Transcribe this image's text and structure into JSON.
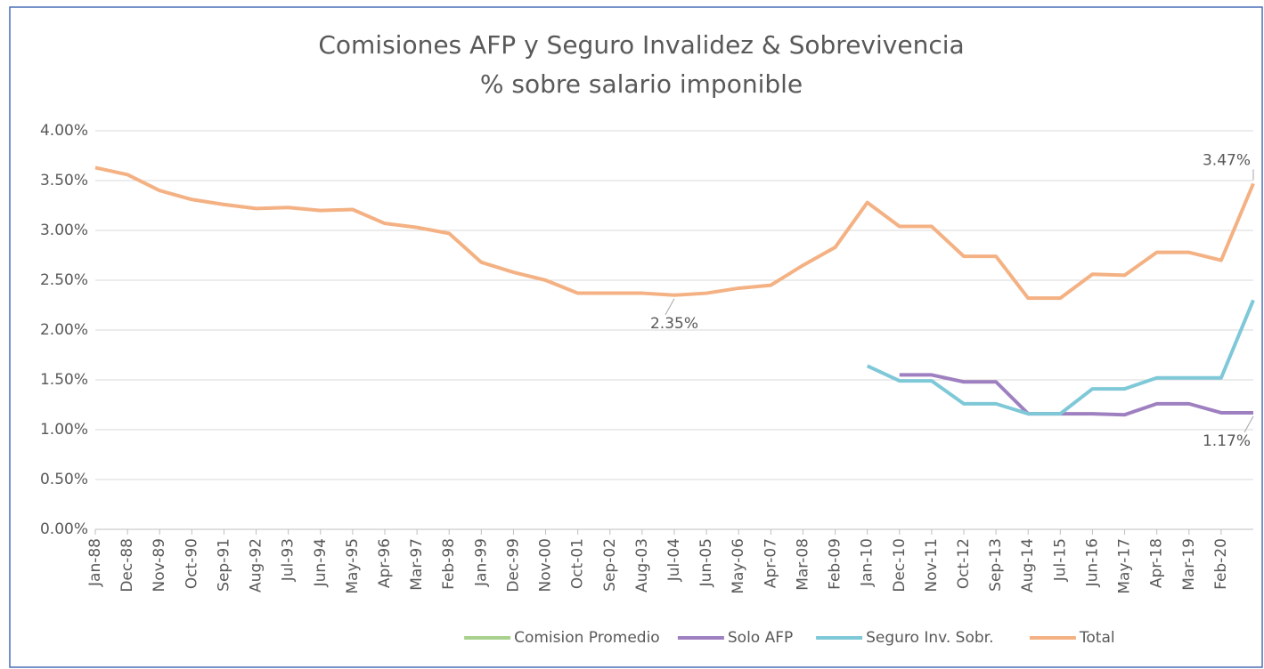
{
  "chart_data": {
    "type": "line",
    "title": "Comisiones AFP y Seguro Invalidez & Sobrevivencia",
    "subtitle": "% sobre salario imponible",
    "categories": [
      "Jan-88",
      "Dec-88",
      "Nov-89",
      "Oct-90",
      "Sep-91",
      "Aug-92",
      "Jul-93",
      "Jun-94",
      "May-95",
      "Apr-96",
      "Mar-97",
      "Feb-98",
      "Jan-99",
      "Dec-99",
      "Nov-00",
      "Oct-01",
      "Sep-02",
      "Aug-03",
      "Jul-04",
      "Jun-05",
      "May-06",
      "Apr-07",
      "Mar-08",
      "Feb-09",
      "Jan-10",
      "Dec-10",
      "Nov-11",
      "Oct-12",
      "Sep-13",
      "Aug-14",
      "Jul-15",
      "Jun-16",
      "May-17",
      "Apr-18",
      "Mar-19",
      "Feb-20",
      null
    ],
    "series": [
      {
        "name": "Comision Promedio",
        "color": "#a9d18e",
        "values": [
          null,
          null,
          null,
          null,
          null,
          null,
          null,
          null,
          null,
          null,
          null,
          null,
          null,
          null,
          null,
          null,
          null,
          null,
          null,
          null,
          null,
          null,
          null,
          null,
          null,
          null,
          null,
          null,
          null,
          null,
          null,
          null,
          null,
          null,
          null,
          null,
          null
        ]
      },
      {
        "name": "Solo AFP",
        "color": "#9e80c0",
        "values": [
          null,
          null,
          null,
          null,
          null,
          null,
          null,
          null,
          null,
          null,
          null,
          null,
          null,
          null,
          null,
          null,
          null,
          null,
          null,
          null,
          null,
          null,
          null,
          null,
          null,
          1.55,
          1.55,
          1.48,
          1.48,
          1.16,
          1.16,
          1.16,
          1.15,
          1.26,
          1.26,
          1.17,
          1.17
        ],
        "value_labels": [
          null,
          null,
          null,
          null,
          null,
          null,
          null,
          null,
          null,
          null,
          null,
          null,
          null,
          null,
          null,
          null,
          null,
          null,
          null,
          null,
          null,
          null,
          null,
          null,
          null,
          null,
          null,
          null,
          null,
          null,
          null,
          null,
          null,
          null,
          null,
          null,
          "1.17%"
        ]
      },
      {
        "name": "Seguro Inv. Sobr.",
        "color": "#7ec8d8",
        "values": [
          null,
          null,
          null,
          null,
          null,
          null,
          null,
          null,
          null,
          null,
          null,
          null,
          null,
          null,
          null,
          null,
          null,
          null,
          null,
          null,
          null,
          null,
          null,
          null,
          1.64,
          1.49,
          1.49,
          1.26,
          1.26,
          1.16,
          1.16,
          1.41,
          1.41,
          1.52,
          1.52,
          1.52,
          2.3
        ]
      },
      {
        "name": "Total",
        "color": "#f4b183",
        "values": [
          3.63,
          3.56,
          3.4,
          3.31,
          3.26,
          3.22,
          3.23,
          3.2,
          3.21,
          3.07,
          3.03,
          2.97,
          2.68,
          2.58,
          2.5,
          2.37,
          2.37,
          2.37,
          2.35,
          2.37,
          2.42,
          2.45,
          2.65,
          2.83,
          3.28,
          3.04,
          3.04,
          2.74,
          2.74,
          2.32,
          2.32,
          2.56,
          2.55,
          2.78,
          2.78,
          2.7,
          3.47
        ],
        "value_labels": [
          null,
          null,
          null,
          null,
          null,
          null,
          null,
          null,
          null,
          null,
          null,
          null,
          null,
          null,
          null,
          null,
          null,
          null,
          "2.35%",
          null,
          null,
          null,
          null,
          null,
          null,
          null,
          null,
          null,
          null,
          null,
          null,
          null,
          null,
          null,
          null,
          null,
          "3.47%"
        ]
      }
    ],
    "ylim": [
      0,
      4
    ],
    "yticks": [
      {
        "value": 0,
        "label": "0.00%"
      },
      {
        "value": 0.5,
        "label": "0.50%"
      },
      {
        "value": 1,
        "label": "1.00%"
      },
      {
        "value": 1.5,
        "label": "1.50%"
      },
      {
        "value": 2,
        "label": "2.00%"
      },
      {
        "value": 2.5,
        "label": "2.50%"
      },
      {
        "value": 3,
        "label": "3.00%"
      },
      {
        "value": 3.5,
        "label": "3.50%"
      },
      {
        "value": 4,
        "label": "4.00%"
      }
    ],
    "grid": true,
    "legend": "bottom"
  }
}
